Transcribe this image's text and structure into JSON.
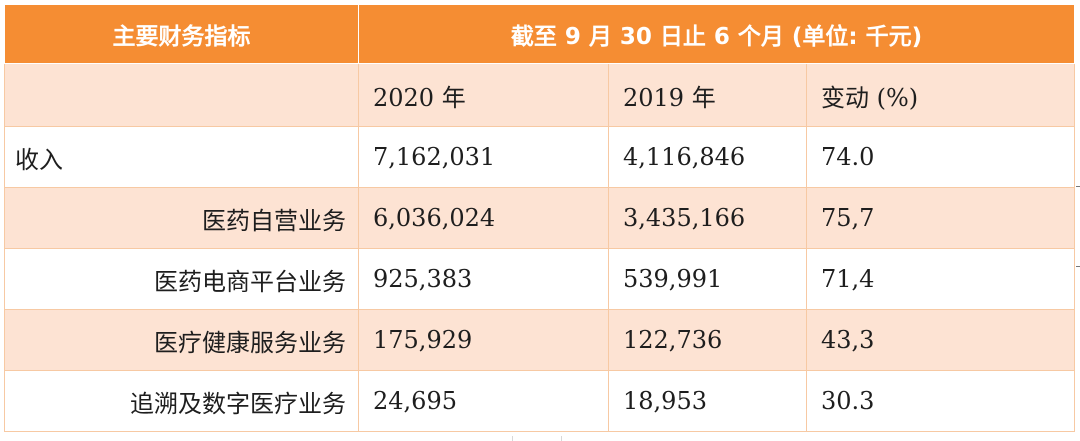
{
  "table": {
    "header": {
      "metric_label": "主要财务指标",
      "period_label": "截至 9 月 30 日止 6 个月 (单位: 千元)"
    },
    "subheader": [
      "",
      "2020 年",
      "2019 年",
      "变动 (%)"
    ],
    "rows": [
      {
        "label": "收入",
        "v2020": "7,162,031",
        "v2019": "4,116,846",
        "change": "74.0"
      },
      {
        "label": "医药自营业务",
        "v2020": "6,036,024",
        "v2019": "3,435,166",
        "change": "75,7"
      },
      {
        "label": "医药电商平台业务",
        "v2020": "925,383",
        "v2019": "539,991",
        "change": "71,4"
      },
      {
        "label": "医疗健康服务业务",
        "v2020": "175,929",
        "v2019": "122,736",
        "change": "43,3"
      },
      {
        "label": "追溯及数字医疗业务",
        "v2020": "24,695",
        "v2019": "18,953",
        "change": "30.3"
      }
    ]
  },
  "colors": {
    "header_bg": "#f58d33",
    "shade_bg": "#fde3d3",
    "border": "#f7c9a3"
  }
}
